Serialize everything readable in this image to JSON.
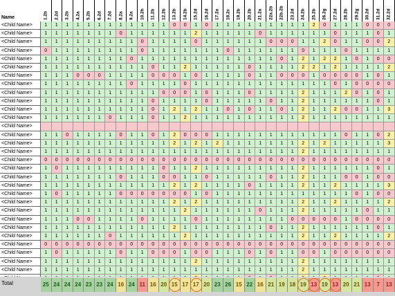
{
  "header": {
    "name_label": "Name"
  },
  "columns": [
    "1.2b",
    "2.2d",
    "3.2b",
    "4.2a",
    "5.2b",
    "6.2d",
    "7.2d",
    "8.2a",
    "9.2a",
    "10.2h",
    "11.2b",
    "12.2b",
    "13.2b",
    "14.2b",
    "15.2d",
    "16.2d",
    "17.2a",
    "18.2c",
    "19.2b",
    "20.2b",
    "21.2a",
    "22a.2b",
    "22b.2b",
    "23.2d",
    "24.2b",
    "25.2b",
    "26.2g",
    "27.2d",
    "28.2b",
    "29.2g",
    "30.2d",
    "31.2d",
    "32.2d"
  ],
  "rows": [
    {
      "name": "<Child Name>",
      "values": [
        1,
        1,
        1,
        1,
        1,
        1,
        1,
        1,
        1,
        1,
        1,
        1,
        0,
        0,
        1,
        0,
        1,
        1,
        1,
        1,
        1,
        1,
        1,
        1,
        1,
        2,
        0,
        1,
        1,
        1,
        0,
        0,
        0
      ]
    },
    {
      "name": "<Child Name>",
      "values": [
        1,
        1,
        1,
        1,
        1,
        1,
        1,
        0,
        1,
        1,
        1,
        1,
        1,
        1,
        2,
        1,
        1,
        1,
        1,
        1,
        0,
        1,
        1,
        1,
        1,
        1,
        1,
        0,
        1,
        1,
        1,
        0,
        1
      ]
    },
    {
      "name": "<Child Name>",
      "values": [
        1,
        1,
        1,
        1,
        1,
        1,
        1,
        1,
        1,
        0,
        1,
        1,
        1,
        1,
        0,
        1,
        1,
        1,
        1,
        1,
        1,
        0,
        0,
        0,
        1,
        1,
        2,
        0,
        1,
        1,
        0,
        0,
        2
      ]
    },
    {
      "name": "<Child Name>",
      "values": [
        0,
        1,
        1,
        1,
        1,
        1,
        1,
        1,
        1,
        0,
        1,
        1,
        1,
        1,
        1,
        1,
        1,
        0,
        1,
        1,
        1,
        1,
        1,
        1,
        0,
        1,
        1,
        1,
        0,
        1,
        1,
        1,
        1
      ]
    },
    {
      "name": "<Child Name>",
      "values": [
        1,
        1,
        1,
        1,
        1,
        1,
        1,
        1,
        0,
        1,
        1,
        1,
        1,
        1,
        1,
        1,
        1,
        1,
        1,
        1,
        1,
        1,
        0,
        1,
        2,
        1,
        2,
        2,
        1,
        0,
        1,
        0,
        0
      ]
    },
    {
      "name": "<Child Name>",
      "values": [
        1,
        1,
        1,
        1,
        1,
        1,
        1,
        1,
        1,
        1,
        0,
        1,
        1,
        2,
        1,
        1,
        1,
        1,
        1,
        0,
        1,
        1,
        1,
        1,
        2,
        2,
        1,
        2,
        1,
        1,
        1,
        1,
        2
      ]
    },
    {
      "name": "<Child Name>",
      "values": [
        1,
        1,
        1,
        0,
        0,
        0,
        1,
        1,
        1,
        1,
        0,
        0,
        0,
        1,
        0,
        1,
        1,
        1,
        1,
        0,
        1,
        1,
        0,
        0,
        0,
        1,
        0,
        0,
        0,
        0,
        1,
        0,
        1
      ]
    },
    {
      "name": "<Child Name>",
      "values": [
        1,
        1,
        1,
        1,
        1,
        1,
        1,
        1,
        0,
        1,
        1,
        1,
        1,
        0,
        1,
        1,
        1,
        1,
        1,
        1,
        1,
        1,
        1,
        1,
        1,
        1,
        1,
        0,
        1,
        0,
        0,
        0,
        0
      ]
    },
    {
      "name": "<Child Name>",
      "values": [
        1,
        1,
        1,
        1,
        1,
        1,
        1,
        1,
        1,
        1,
        1,
        0,
        0,
        0,
        1,
        0,
        1,
        1,
        1,
        0,
        1,
        1,
        1,
        1,
        2,
        1,
        1,
        1,
        2,
        0,
        1,
        0,
        1
      ]
    },
    {
      "name": "<Child Name>",
      "values": [
        1,
        1,
        1,
        1,
        1,
        1,
        1,
        1,
        1,
        1,
        0,
        1,
        1,
        1,
        1,
        0,
        1,
        1,
        1,
        1,
        1,
        0,
        1,
        1,
        2,
        1,
        1,
        1,
        1,
        1,
        1,
        0,
        1
      ]
    },
    {
      "name": "<Child Name>",
      "values": [
        1,
        1,
        1,
        1,
        1,
        1,
        1,
        1,
        1,
        1,
        0,
        1,
        2,
        1,
        2,
        1,
        1,
        0,
        1,
        0,
        1,
        1,
        0,
        1,
        2,
        1,
        1,
        2,
        0,
        0,
        1,
        1,
        3
      ]
    },
    {
      "name": "<Child Name>",
      "values": [
        1,
        1,
        1,
        1,
        1,
        1,
        0,
        1,
        1,
        1,
        0,
        1,
        1,
        2,
        1,
        1,
        1,
        1,
        1,
        1,
        1,
        1,
        1,
        1,
        2,
        1,
        1,
        1,
        1,
        1,
        1,
        1,
        1
      ]
    },
    {
      "name": "<Child Name>",
      "values": null
    },
    {
      "name": "<Child Name>",
      "values": [
        1,
        1,
        0,
        1,
        1,
        1,
        1,
        0,
        1,
        1,
        0,
        1,
        2,
        0,
        0,
        0,
        1,
        1,
        1,
        1,
        1,
        1,
        1,
        1,
        1,
        1,
        1,
        1,
        0,
        1,
        1,
        0,
        2
      ]
    },
    {
      "name": "<Child Name>",
      "values": [
        1,
        1,
        1,
        1,
        1,
        1,
        1,
        1,
        1,
        1,
        1,
        1,
        2,
        1,
        2,
        1,
        2,
        1,
        1,
        1,
        1,
        1,
        1,
        1,
        2,
        1,
        2,
        1,
        1,
        1,
        1,
        1,
        3
      ]
    },
    {
      "name": "<Child Name>",
      "values": [
        1,
        1,
        1,
        1,
        1,
        1,
        1,
        1,
        1,
        1,
        1,
        1,
        1,
        1,
        1,
        1,
        1,
        1,
        1,
        1,
        1,
        1,
        1,
        1,
        2,
        1,
        1,
        1,
        1,
        1,
        1,
        1,
        1
      ]
    },
    {
      "name": "<Child Name>",
      "values": [
        0,
        0,
        0,
        0,
        0,
        0,
        0,
        0,
        0,
        0,
        0,
        0,
        0,
        0,
        0,
        0,
        0,
        0,
        0,
        0,
        0,
        0,
        0,
        0,
        0,
        0,
        0,
        0,
        0,
        0,
        0,
        0,
        0
      ]
    },
    {
      "name": "<Child Name>",
      "values": [
        1,
        0,
        1,
        1,
        1,
        1,
        1,
        1,
        1,
        1,
        1,
        0,
        1,
        1,
        2,
        1,
        1,
        1,
        1,
        1,
        1,
        1,
        1,
        1,
        2,
        1,
        1,
        1,
        1,
        1,
        1,
        0,
        1
      ]
    },
    {
      "name": "<Child Name>",
      "values": [
        1,
        1,
        1,
        1,
        1,
        1,
        1,
        0,
        1,
        1,
        1,
        0,
        0,
        1,
        1,
        0,
        1,
        1,
        1,
        1,
        1,
        0,
        1,
        1,
        2,
        1,
        1,
        1,
        0,
        0,
        1,
        0,
        0
      ]
    },
    {
      "name": "<Child Name>",
      "values": [
        1,
        1,
        1,
        1,
        1,
        1,
        1,
        1,
        1,
        1,
        1,
        1,
        2,
        1,
        2,
        1,
        1,
        1,
        1,
        0,
        1,
        1,
        1,
        1,
        2,
        1,
        1,
        2,
        1,
        1,
        1,
        1,
        3
      ]
    },
    {
      "name": "<Child Name>",
      "values": [
        1,
        0,
        1,
        1,
        1,
        1,
        1,
        0,
        0,
        0,
        0,
        0,
        0,
        0,
        1,
        0,
        1,
        1,
        1,
        1,
        1,
        1,
        1,
        1,
        1,
        1,
        1,
        1,
        1,
        0,
        1,
        0,
        0
      ]
    },
    {
      "name": "<Child Name>",
      "values": [
        1,
        1,
        1,
        1,
        1,
        1,
        1,
        1,
        1,
        1,
        1,
        1,
        2,
        1,
        2,
        1,
        1,
        1,
        1,
        1,
        1,
        1,
        1,
        1,
        2,
        1,
        1,
        2,
        1,
        1,
        1,
        1,
        2
      ]
    },
    {
      "name": "<Child Name>",
      "values": [
        1,
        1,
        1,
        1,
        1,
        1,
        1,
        1,
        1,
        1,
        1,
        1,
        1,
        2,
        1,
        1,
        1,
        1,
        1,
        1,
        0,
        1,
        1,
        1,
        2,
        1,
        1,
        1,
        1,
        1,
        0,
        1,
        1
      ]
    },
    {
      "name": "<Child Name>",
      "values": [
        1,
        1,
        1,
        0,
        0,
        1,
        1,
        1,
        1,
        0,
        1,
        1,
        1,
        1,
        0,
        1,
        1,
        1,
        1,
        1,
        1,
        1,
        1,
        0,
        0,
        0,
        0,
        0,
        1,
        0,
        0,
        0,
        0
      ]
    },
    {
      "name": "<Child Name>",
      "values": [
        1,
        1,
        1,
        1,
        1,
        1,
        1,
        1,
        1,
        1,
        1,
        1,
        2,
        1,
        1,
        1,
        1,
        1,
        1,
        1,
        1,
        0,
        1,
        1,
        2,
        1,
        1,
        1,
        1,
        1,
        1,
        0,
        1
      ]
    },
    {
      "name": "<Child Name>",
      "values": [
        1,
        1,
        1,
        1,
        1,
        1,
        0,
        1,
        1,
        1,
        1,
        1,
        1,
        2,
        1,
        1,
        1,
        1,
        1,
        1,
        1,
        1,
        1,
        1,
        2,
        1,
        1,
        2,
        1,
        1,
        1,
        1,
        2
      ]
    },
    {
      "name": "<Child Name>",
      "values": [
        0,
        0,
        0,
        0,
        0,
        0,
        0,
        0,
        0,
        0,
        0,
        0,
        0,
        0,
        0,
        0,
        0,
        0,
        0,
        0,
        0,
        0,
        0,
        0,
        0,
        0,
        0,
        0,
        0,
        0,
        0,
        0,
        0
      ]
    },
    {
      "name": "<Child Name>",
      "values": [
        1,
        0,
        1,
        1,
        1,
        1,
        1,
        0,
        1,
        1,
        0,
        0,
        0,
        1,
        0,
        0,
        1,
        1,
        1,
        0,
        1,
        0,
        1,
        1,
        0,
        0,
        1,
        0,
        0,
        0,
        0,
        0,
        0
      ]
    },
    {
      "name": "<Child Name>",
      "values": [
        1,
        1,
        1,
        1,
        1,
        1,
        1,
        1,
        1,
        1,
        1,
        1,
        1,
        1,
        2,
        1,
        1,
        1,
        1,
        1,
        1,
        1,
        1,
        1,
        2,
        1,
        1,
        1,
        1,
        1,
        1,
        1,
        1
      ]
    },
    {
      "name": "<Child Name>",
      "values": [
        1,
        1,
        1,
        1,
        1,
        1,
        1,
        1,
        1,
        1,
        1,
        1,
        1,
        1,
        1,
        1,
        1,
        1,
        1,
        1,
        1,
        1,
        1,
        1,
        2,
        1,
        1,
        1,
        1,
        1,
        1,
        1,
        1
      ]
    },
    {
      "name": "<Child Name>",
      "values": [
        1,
        1,
        1,
        1,
        1,
        1,
        1,
        1,
        1,
        1,
        1,
        1,
        1,
        1,
        2,
        1,
        1,
        1,
        1,
        0,
        1,
        0,
        1,
        1,
        2,
        1,
        2,
        1,
        1,
        1,
        1,
        0,
        1
      ]
    },
    {
      "name": "<Child Name>",
      "values": [
        1,
        1,
        1,
        1,
        1,
        1,
        1,
        1,
        1,
        1,
        1,
        1,
        0,
        1,
        0,
        1,
        1,
        1,
        1,
        1,
        1,
        1,
        1,
        1,
        1,
        0,
        1,
        1,
        1,
        1,
        1,
        0,
        1
      ]
    }
  ],
  "total": {
    "label": "Total",
    "values": [
      25,
      24,
      24,
      24,
      23,
      23,
      24,
      16,
      24,
      11,
      16,
      20,
      15,
      17,
      17,
      20,
      23,
      26,
      15,
      22,
      16,
      21,
      19,
      18,
      19,
      13,
      19,
      13,
      20,
      21,
      13,
      7,
      13
    ],
    "circled": [
      12,
      14,
      24,
      25,
      26,
      27
    ]
  },
  "colors": {
    "one": "#d0f2cf",
    "zero": "#f8c8cc",
    "two": "#fbf2a8",
    "circle": "#e36b1d"
  }
}
